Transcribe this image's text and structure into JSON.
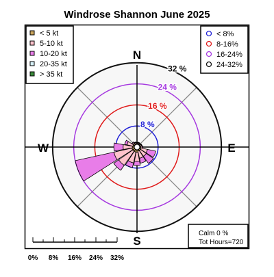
{
  "chart_data": {
    "type": "windrose",
    "title": "Windrose  Shannon June 2025",
    "cardinals": {
      "north": "N",
      "east": "E",
      "south": "S",
      "west": "W"
    },
    "rings": [
      {
        "value": 8,
        "label": "8 %",
        "color": "#1f1fd6"
      },
      {
        "value": 16,
        "label": "16 %",
        "color": "#e01c1c"
      },
      {
        "value": 24,
        "label": "24 %",
        "color": "#a63ae0"
      },
      {
        "value": 32,
        "label": "32 %",
        "color": "#111111"
      }
    ],
    "speed_legend": [
      {
        "label": "< 5  kt",
        "color": "#c9a45c"
      },
      {
        "label": "5-10 kt",
        "color": "#ffc2cc"
      },
      {
        "label": "10-20 kt",
        "color": "#e87de8"
      },
      {
        "label": "20-35 kt",
        "color": "#d6f0f7"
      },
      {
        "label": "> 35 kt",
        "color": "#3a8a3a"
      }
    ],
    "ring_legend": [
      {
        "label": "< 8%",
        "color": "#1f1fd6"
      },
      {
        "label": "8-16%",
        "color": "#e01c1c"
      },
      {
        "label": "16-24%",
        "color": "#a63ae0"
      },
      {
        "label": "24-32%",
        "color": "#111111"
      }
    ],
    "scale_bar": {
      "ticks": [
        "0%",
        "8%",
        "16%",
        "24%",
        "32%"
      ]
    },
    "summary": {
      "calm": "Calm 0 %",
      "hours": "Tot Hours=720"
    },
    "sector_width_deg": 22.5,
    "sectors": [
      {
        "direction": 0,
        "segments": [
          0.5,
          0.3,
          0.2,
          0,
          0
        ]
      },
      {
        "direction": 22.5,
        "segments": [
          0.6,
          0.3,
          0.2,
          0,
          0
        ]
      },
      {
        "direction": 45,
        "segments": [
          0.5,
          0.3,
          0.2,
          0,
          0
        ]
      },
      {
        "direction": 67.5,
        "segments": [
          0.6,
          0.4,
          0.2,
          0,
          0
        ]
      },
      {
        "direction": 90,
        "segments": [
          0.7,
          0.5,
          0.3,
          0,
          0
        ]
      },
      {
        "direction": 112.5,
        "segments": [
          0.8,
          2.5,
          3.2,
          0,
          0
        ]
      },
      {
        "direction": 135,
        "segments": [
          0.8,
          2.7,
          3.3,
          0,
          0
        ]
      },
      {
        "direction": 157.5,
        "segments": [
          0.8,
          2.8,
          1.9,
          0,
          0
        ]
      },
      {
        "direction": 180,
        "segments": [
          1.2,
          3.5,
          1.5,
          0,
          0
        ]
      },
      {
        "direction": 202.5,
        "segments": [
          1.2,
          4.2,
          1.8,
          0,
          0
        ]
      },
      {
        "direction": 225,
        "segments": [
          1.2,
          6.5,
          2.3,
          0,
          0
        ]
      },
      {
        "direction": 247.5,
        "segments": [
          1.2,
          7.0,
          15.0,
          0,
          0
        ]
      },
      {
        "direction": 270,
        "segments": [
          1.0,
          3.5,
          3.5,
          0,
          0
        ]
      },
      {
        "direction": 292.5,
        "segments": [
          0.8,
          2.3,
          0.9,
          0,
          0
        ]
      },
      {
        "direction": 315,
        "segments": [
          0.7,
          0.6,
          0.3,
          0,
          0
        ]
      },
      {
        "direction": 337.5,
        "segments": [
          0.6,
          0.4,
          0.2,
          0,
          0
        ]
      }
    ]
  }
}
